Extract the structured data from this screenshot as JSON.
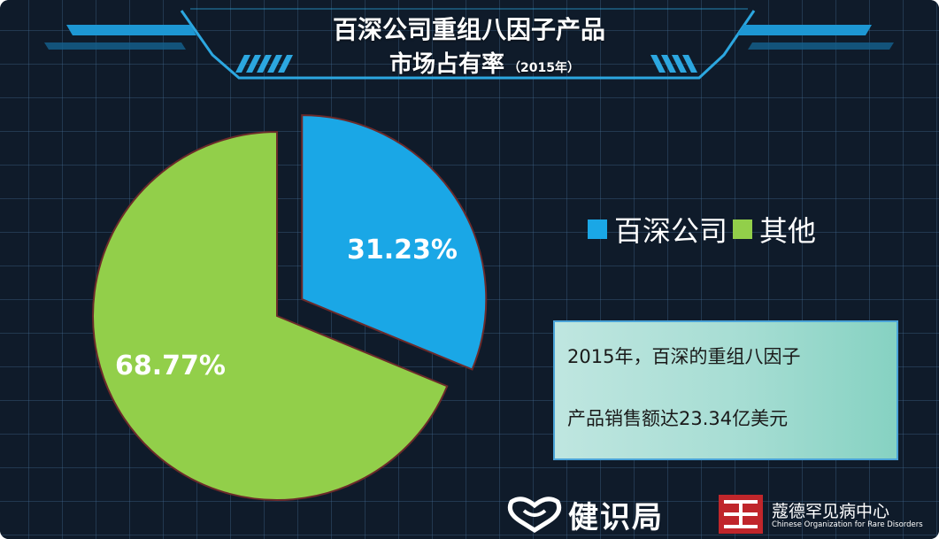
{
  "header": {
    "title_line1": "百深公司重组八因子产品",
    "title_line2": "市场占有率",
    "title_year": "（2015年）"
  },
  "chart_data": {
    "type": "pie",
    "title": "百深公司重组八因子产品市场占有率（2015年）",
    "slices": [
      {
        "name": "百深公司",
        "value": 31.23,
        "label": "31.23%",
        "color": "#1aa7e6",
        "exploded": true
      },
      {
        "name": "其他",
        "value": 68.77,
        "label": "68.77%",
        "color": "#92cf4a",
        "exploded": false
      }
    ],
    "legend": [
      "百深公司",
      "其他"
    ],
    "legend_placement": "right"
  },
  "note": {
    "line1": "2015年，百深的重组八因子",
    "line2": "产品销售额达23.34亿美元"
  },
  "logos": {
    "brand_left": "健识局",
    "brand_right_cn": "蔻德罕见病中心",
    "brand_right_en": "Chinese Organization for Rare Disorders"
  },
  "colors": {
    "background": "#0f1b2a",
    "accent_blue": "#1aa7e6",
    "accent_green": "#92cf4a",
    "note_box_border": "#4aa3d8"
  }
}
